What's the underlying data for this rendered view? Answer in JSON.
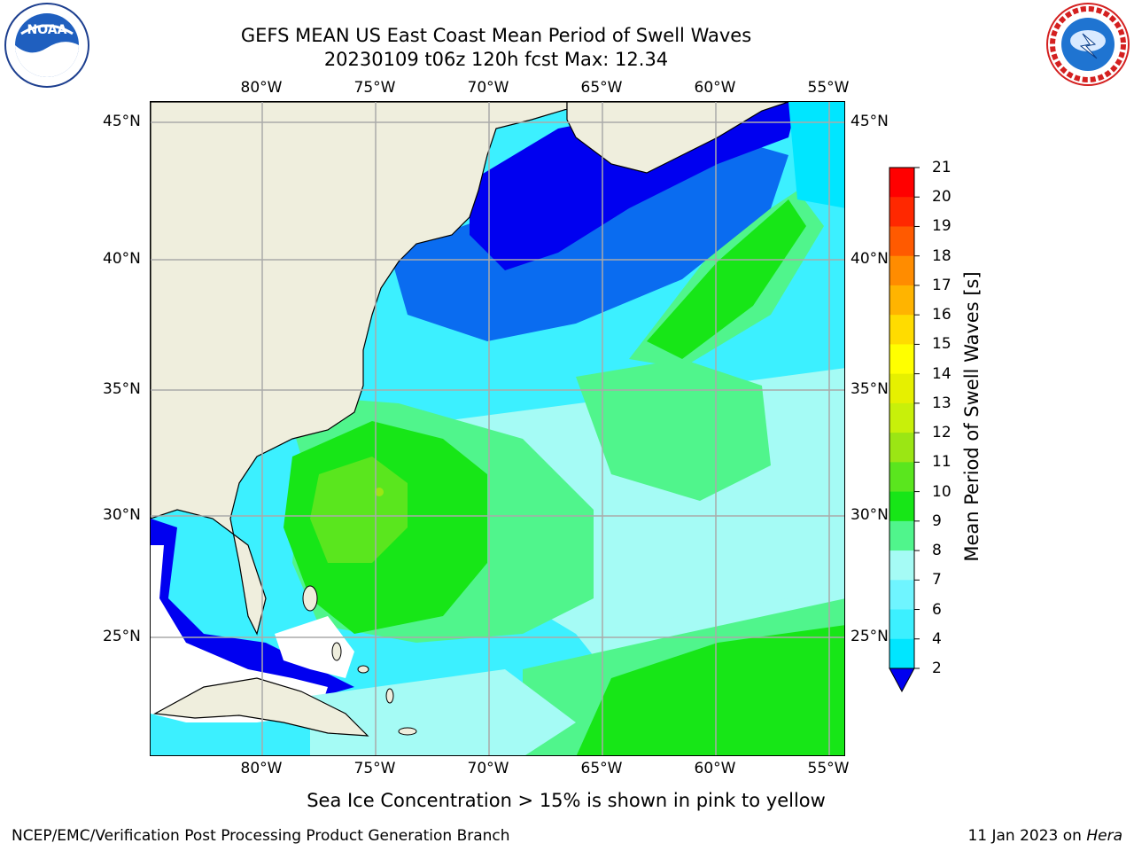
{
  "title": {
    "line1": "GEFS MEAN US East Coast Mean Period of Swell Waves",
    "line2": "20230109 t06z 120h fcst   Max: 12.34"
  },
  "logos": {
    "left": {
      "name": "noaa-logo",
      "text": "NOAA"
    },
    "right": {
      "name": "nws-logo",
      "text": "NATIONAL WEATHER SERVICE"
    }
  },
  "map": {
    "lon_labels": [
      "80°W",
      "75°W",
      "70°W",
      "65°W",
      "60°W",
      "55°W"
    ],
    "lat_labels": [
      "45°N",
      "40°N",
      "35°N",
      "30°N",
      "25°N"
    ],
    "land_color": "#efeedd",
    "nodata_color": "#ffffff"
  },
  "colorbar": {
    "title": "Mean Period of Swell Waves [s]",
    "levels": [
      "2",
      "4",
      "6",
      "7",
      "8",
      "9",
      "10",
      "11",
      "12",
      "13",
      "14",
      "15",
      "16",
      "17",
      "18",
      "19",
      "20",
      "21"
    ],
    "colors": [
      "#0a6cf0",
      "#00e6ff",
      "#3cf0ff",
      "#6ff5ff",
      "#a5fbf5",
      "#50f58c",
      "#17e617",
      "#5ae61e",
      "#9be614",
      "#c8f00a",
      "#e6f000",
      "#ffff00",
      "#ffdc00",
      "#ffb400",
      "#ff8c00",
      "#ff5a00",
      "#ff2800",
      "#ff0000"
    ],
    "extend_color": "#0000f0"
  },
  "footer": {
    "note": "Sea Ice Concentration > 15% is shown in pink to yellow",
    "left": "NCEP/EMC/Verification Post Processing Product Generation Branch",
    "date": "11 Jan 2023 on ",
    "host": "Hera"
  }
}
